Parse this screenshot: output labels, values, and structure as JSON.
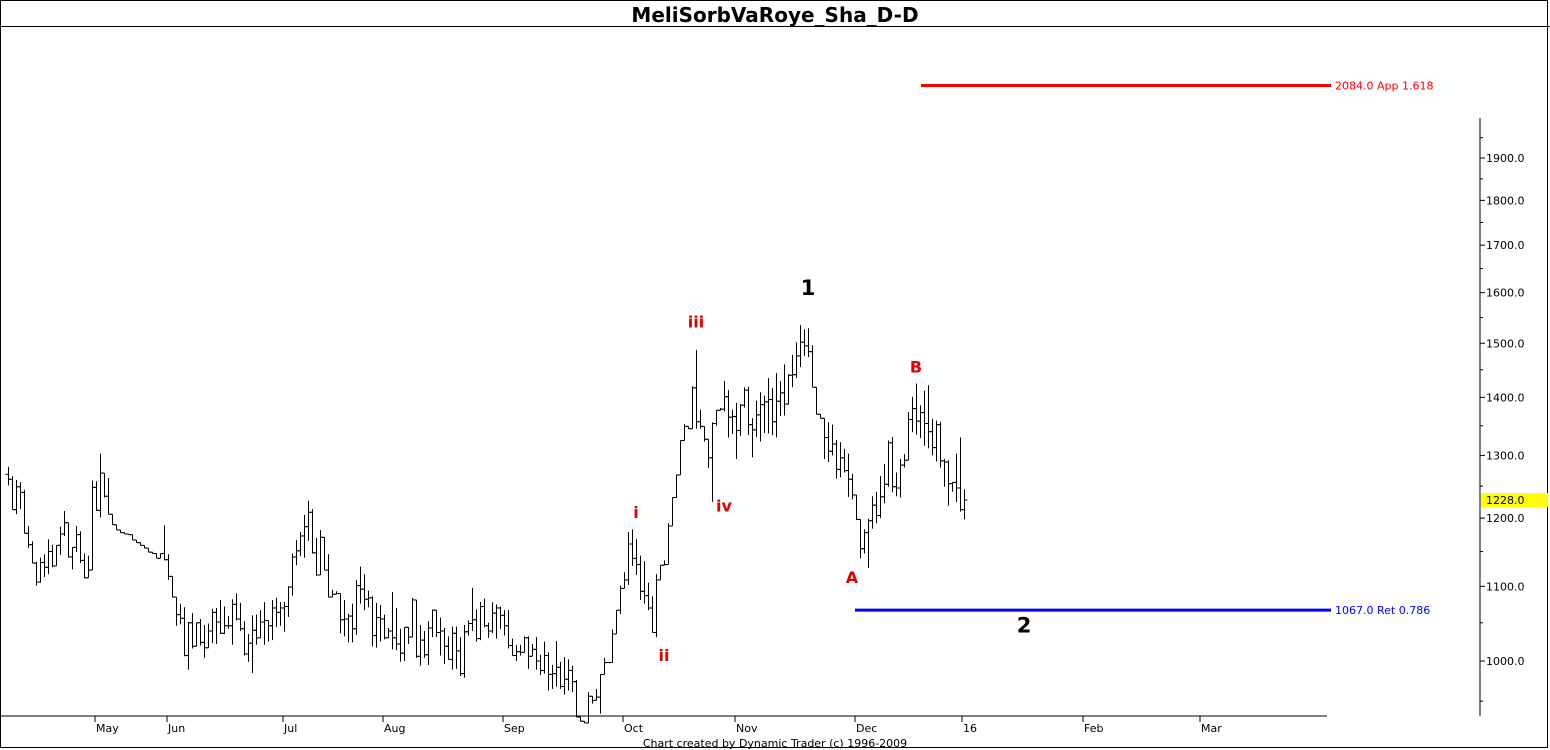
{
  "title": "MeliSorbVaRoye_Sha_D-D",
  "credit": "Chart created by Dynamic Trader  (c) 1996-2009",
  "chart_data": {
    "type": "ohlc",
    "x_labels": [
      "May",
      "Jun",
      "Jul",
      "Aug",
      "Sep",
      "Oct",
      "Nov",
      "Dec",
      "16",
      "Feb",
      "Mar"
    ],
    "y_ticks": [
      1000,
      1100,
      1200,
      1300,
      1400,
      1500,
      1600,
      1700,
      1800,
      1900
    ],
    "y_tick_labels": [
      "1000.0",
      "1100.0",
      "1200.0",
      "1300.0",
      "1400.0",
      "1500.0",
      "1600.0",
      "1700.0",
      "1800.0",
      "1900.0"
    ],
    "current_price": {
      "value": 1228,
      "label": "1228.0",
      "color": "#ffff00"
    },
    "levels": [
      {
        "value": 2084,
        "label": "2084.0 App 1.618",
        "color": "#ff0000"
      },
      {
        "value": 1067,
        "label": "1067.0 Ret 0.786",
        "color": "#0000ff"
      }
    ],
    "wave_labels": [
      {
        "text": "i",
        "bar": 157,
        "price": 1200,
        "color": "#e00000",
        "style": "minor"
      },
      {
        "text": "ii",
        "bar": 164,
        "price": 1000,
        "color": "#e00000",
        "style": "minor"
      },
      {
        "text": "iii",
        "bar": 172,
        "price": 1530,
        "color": "#e00000",
        "style": "minor"
      },
      {
        "text": "iv",
        "bar": 179,
        "price": 1210,
        "color": "#e00000",
        "style": "minor"
      },
      {
        "text": "A",
        "bar": 211,
        "price": 1105,
        "color": "#e00000",
        "style": "minor"
      },
      {
        "text": "B",
        "bar": 227,
        "price": 1445,
        "color": "#e00000",
        "style": "minor"
      },
      {
        "text": "1",
        "bar": 200,
        "price": 1595,
        "color": "#000000",
        "style": "major"
      },
      {
        "text": "2",
        "bar": 254,
        "price": 1037,
        "color": "#000000",
        "style": "major"
      }
    ],
    "ohlc": [
      [
        1269,
        1281,
        1251,
        1261
      ],
      [
        1261,
        1266,
        1213,
        1213
      ],
      [
        1213,
        1260,
        1206,
        1249
      ],
      [
        1249,
        1256,
        1214,
        1240
      ],
      [
        1240,
        1244,
        1177,
        1177
      ],
      [
        1177,
        1188,
        1155,
        1160
      ],
      [
        1160,
        1165,
        1133,
        1133
      ],
      [
        1133,
        1135,
        1101,
        1106
      ],
      [
        1106,
        1141,
        1105,
        1134
      ],
      [
        1134,
        1146,
        1113,
        1127
      ],
      [
        1127,
        1168,
        1117,
        1150
      ],
      [
        1150,
        1160,
        1127,
        1129
      ],
      [
        1129,
        1159,
        1129,
        1159
      ],
      [
        1159,
        1187,
        1145,
        1176
      ],
      [
        1176,
        1211,
        1173,
        1193
      ],
      [
        1193,
        1193,
        1141,
        1142
      ],
      [
        1142,
        1156,
        1124,
        1156
      ],
      [
        1156,
        1188,
        1149,
        1175
      ],
      [
        1175,
        1180,
        1133,
        1137
      ],
      [
        1137,
        1147,
        1111,
        1112
      ],
      [
        1112,
        1144,
        1112,
        1123
      ],
      [
        1123,
        1259,
        1123,
        1248
      ],
      [
        1248,
        1258,
        1211,
        1212
      ],
      [
        1212,
        1303,
        1201,
        1271
      ],
      [
        1271,
        1271,
        1232,
        1234
      ],
      [
        1234,
        1263,
        1206,
        1206
      ],
      [
        1206,
        1206,
        1190,
        1190
      ],
      [
        1190,
        1190,
        1182,
        1182
      ],
      [
        1182,
        1182,
        1178,
        1178
      ],
      [
        1178,
        1178,
        1176,
        1176
      ],
      [
        1176,
        1176,
        1175,
        1175
      ],
      [
        1175,
        1175,
        1167,
        1167
      ],
      [
        1167,
        1167,
        1163,
        1163
      ],
      [
        1163,
        1163,
        1159,
        1159
      ],
      [
        1159,
        1159,
        1155,
        1155
      ],
      [
        1155,
        1155,
        1149,
        1149
      ],
      [
        1149,
        1149,
        1147,
        1147
      ],
      [
        1147,
        1147,
        1140,
        1140
      ],
      [
        1140,
        1147,
        1140,
        1147
      ],
      [
        1147,
        1189,
        1137,
        1138
      ],
      [
        1138,
        1146,
        1109,
        1114
      ],
      [
        1114,
        1114,
        1085,
        1085
      ],
      [
        1085,
        1085,
        1046,
        1061
      ],
      [
        1061,
        1076,
        1048,
        1056
      ],
      [
        1056,
        1071,
        1006,
        1007
      ],
      [
        1007,
        1051,
        989,
        1050
      ],
      [
        1050,
        1063,
        1016,
        1019
      ],
      [
        1019,
        1050,
        1019,
        1050
      ],
      [
        1050,
        1055,
        1020,
        1024
      ],
      [
        1024,
        1047,
        1004,
        1017
      ],
      [
        1017,
        1049,
        1017,
        1039
      ],
      [
        1039,
        1069,
        1023,
        1064
      ],
      [
        1064,
        1070,
        1022,
        1051
      ],
      [
        1051,
        1081,
        1035,
        1036
      ],
      [
        1036,
        1072,
        1035,
        1046
      ],
      [
        1046,
        1059,
        1042,
        1046
      ],
      [
        1046,
        1082,
        1021,
        1075
      ],
      [
        1075,
        1090,
        1053,
        1055
      ],
      [
        1055,
        1077,
        1039,
        1042
      ],
      [
        1042,
        1052,
        1007,
        1009
      ],
      [
        1009,
        1035,
        999,
        1023
      ],
      [
        1023,
        1060,
        985,
        1040
      ],
      [
        1040,
        1061,
        1021,
        1030
      ],
      [
        1030,
        1067,
        1030,
        1051
      ],
      [
        1051,
        1078,
        1021,
        1053
      ],
      [
        1053,
        1053,
        1025,
        1046
      ],
      [
        1046,
        1081,
        1027,
        1070
      ],
      [
        1070,
        1084,
        1044,
        1064
      ],
      [
        1064,
        1078,
        1046,
        1070
      ],
      [
        1070,
        1078,
        1038,
        1072
      ],
      [
        1072,
        1100,
        1058,
        1099
      ],
      [
        1099,
        1147,
        1087,
        1142
      ],
      [
        1142,
        1167,
        1130,
        1151
      ],
      [
        1151,
        1179,
        1143,
        1173
      ],
      [
        1173,
        1205,
        1141,
        1187
      ],
      [
        1187,
        1227,
        1166,
        1209
      ],
      [
        1209,
        1214,
        1147,
        1148
      ],
      [
        1148,
        1170,
        1115,
        1116
      ],
      [
        1116,
        1182,
        1116,
        1171
      ],
      [
        1171,
        1171,
        1123,
        1123
      ],
      [
        1123,
        1146,
        1085,
        1085
      ],
      [
        1085,
        1095,
        1085,
        1089
      ],
      [
        1089,
        1093,
        1089,
        1090
      ],
      [
        1090,
        1090,
        1036,
        1054
      ],
      [
        1054,
        1081,
        1032,
        1055
      ],
      [
        1055,
        1062,
        1024,
        1059
      ],
      [
        1059,
        1076,
        1024,
        1042
      ],
      [
        1042,
        1109,
        1034,
        1101
      ],
      [
        1101,
        1128,
        1076,
        1096
      ],
      [
        1096,
        1117,
        1067,
        1082
      ],
      [
        1082,
        1094,
        1071,
        1084
      ],
      [
        1084,
        1086,
        1019,
        1033
      ],
      [
        1033,
        1077,
        1017,
        1057
      ],
      [
        1057,
        1074,
        1025,
        1055
      ],
      [
        1055,
        1061,
        1028,
        1030
      ],
      [
        1030,
        1043,
        1030,
        1039
      ],
      [
        1039,
        1092,
        1015,
        1030
      ],
      [
        1030,
        1070,
        1014,
        1022
      ],
      [
        1022,
        1042,
        999,
        1010
      ],
      [
        1010,
        1044,
        1000,
        1044
      ],
      [
        1044,
        1044,
        1022,
        1031
      ],
      [
        1031,
        1084,
        1031,
        1081
      ],
      [
        1081,
        1081,
        1004,
        1006
      ],
      [
        1006,
        1047,
        994,
        1027
      ],
      [
        1027,
        1039,
        1004,
        1008
      ],
      [
        1008,
        1052,
        995,
        1043
      ],
      [
        1043,
        1068,
        1031,
        1067
      ],
      [
        1067,
        1067,
        1031,
        1037
      ],
      [
        1037,
        1057,
        1007,
        1039
      ],
      [
        1039,
        1043,
        996,
        1019
      ],
      [
        1019,
        1032,
        1002,
        1002
      ],
      [
        1002,
        1045,
        989,
        1036
      ],
      [
        1036,
        1045,
        990,
        1013
      ],
      [
        1013,
        1031,
        981,
        984
      ],
      [
        984,
        1047,
        979,
        1038
      ],
      [
        1038,
        1053,
        1033,
        1049
      ],
      [
        1049,
        1098,
        1039,
        1054
      ],
      [
        1054,
        1068,
        1025,
        1029
      ],
      [
        1029,
        1078,
        1027,
        1072
      ],
      [
        1072,
        1083,
        1044,
        1046
      ],
      [
        1046,
        1050,
        1030,
        1039
      ],
      [
        1039,
        1078,
        1036,
        1063
      ],
      [
        1063,
        1075,
        1029,
        1070
      ],
      [
        1070,
        1072,
        1042,
        1060
      ],
      [
        1060,
        1067,
        1033,
        1046
      ],
      [
        1046,
        1067,
        1016,
        1020
      ],
      [
        1020,
        1029,
        1007,
        1007
      ],
      [
        1007,
        1021,
        1000,
        1012
      ],
      [
        1012,
        1021,
        1007,
        1011
      ],
      [
        1011,
        1032,
        1011,
        1030
      ],
      [
        1030,
        1032,
        990,
        1006
      ],
      [
        1006,
        1022,
        1006,
        1015
      ],
      [
        1015,
        1031,
        989,
        1000
      ],
      [
        1000,
        1008,
        982,
        988
      ],
      [
        988,
        1025,
        984,
        1007
      ],
      [
        1007,
        1011,
        963,
        983
      ],
      [
        983,
        995,
        965,
        984
      ],
      [
        984,
        1026,
        968,
        992
      ],
      [
        992,
        999,
        965,
        968
      ],
      [
        968,
        1005,
        958,
        977
      ],
      [
        977,
        1002,
        963,
        988
      ],
      [
        988,
        994,
        961,
        974
      ],
      [
        974,
        976,
        931,
        931
      ],
      [
        931,
        931,
        926,
        926
      ],
      [
        926,
        926,
        924,
        924
      ],
      [
        924,
        961,
        924,
        956
      ],
      [
        956,
        956,
        947,
        951
      ],
      [
        951,
        965,
        951,
        955
      ],
      [
        955,
        983,
        935,
        983
      ],
      [
        983,
        1004,
        983,
        998
      ],
      [
        998,
        998,
        998,
        998
      ],
      [
        998,
        1041,
        998,
        1035
      ],
      [
        1035,
        1067,
        1035,
        1067
      ],
      [
        1067,
        1101,
        1062,
        1097
      ],
      [
        1097,
        1120,
        1097,
        1109
      ],
      [
        1109,
        1179,
        1102,
        1161
      ],
      [
        1161,
        1183,
        1129,
        1140
      ],
      [
        1140,
        1168,
        1116,
        1131
      ],
      [
        1131,
        1144,
        1081,
        1093
      ],
      [
        1093,
        1136,
        1076,
        1087
      ],
      [
        1087,
        1105,
        1067,
        1070
      ],
      [
        1070,
        1086,
        1037,
        1037
      ],
      [
        1037,
        1117,
        1031,
        1109
      ],
      [
        1109,
        1130,
        1109,
        1130
      ],
      [
        1130,
        1137,
        1130,
        1131
      ],
      [
        1131,
        1192,
        1131,
        1188
      ],
      [
        1188,
        1232,
        1188,
        1232
      ],
      [
        1232,
        1268,
        1232,
        1268
      ],
      [
        1268,
        1325,
        1268,
        1325
      ],
      [
        1325,
        1353,
        1325,
        1349
      ],
      [
        1349,
        1349,
        1345,
        1345
      ],
      [
        1345,
        1420,
        1345,
        1417
      ],
      [
        1417,
        1487,
        1345,
        1357
      ],
      [
        1357,
        1378,
        1345,
        1349
      ],
      [
        1349,
        1349,
        1323,
        1327
      ],
      [
        1327,
        1327,
        1279,
        1296
      ],
      [
        1296,
        1356,
        1225,
        1354
      ],
      [
        1354,
        1377,
        1350,
        1377
      ],
      [
        1377,
        1381,
        1377,
        1379
      ],
      [
        1379,
        1430,
        1375,
        1401
      ],
      [
        1401,
        1413,
        1330,
        1365
      ],
      [
        1365,
        1378,
        1336,
        1366
      ],
      [
        1366,
        1390,
        1294,
        1342
      ],
      [
        1342,
        1388,
        1333,
        1386
      ],
      [
        1386,
        1418,
        1382,
        1413
      ],
      [
        1413,
        1419,
        1334,
        1352
      ],
      [
        1352,
        1363,
        1297,
        1343
      ],
      [
        1343,
        1394,
        1331,
        1369
      ],
      [
        1369,
        1409,
        1323,
        1387
      ],
      [
        1387,
        1403,
        1338,
        1392
      ],
      [
        1392,
        1435,
        1337,
        1396
      ],
      [
        1396,
        1417,
        1334,
        1357
      ],
      [
        1357,
        1444,
        1330,
        1393
      ],
      [
        1393,
        1429,
        1367,
        1408
      ],
      [
        1408,
        1460,
        1368,
        1388
      ],
      [
        1388,
        1442,
        1387,
        1440
      ],
      [
        1440,
        1478,
        1418,
        1441
      ],
      [
        1441,
        1502,
        1435,
        1476
      ],
      [
        1476,
        1535,
        1455,
        1502
      ],
      [
        1502,
        1527,
        1476,
        1495
      ],
      [
        1495,
        1529,
        1474,
        1484
      ],
      [
        1484,
        1496,
        1418,
        1418
      ],
      [
        1418,
        1418,
        1370,
        1370
      ],
      [
        1370,
        1370,
        1363,
        1363
      ],
      [
        1363,
        1363,
        1294,
        1330
      ],
      [
        1330,
        1356,
        1289,
        1307
      ],
      [
        1307,
        1352,
        1300,
        1319
      ],
      [
        1319,
        1326,
        1262,
        1277
      ],
      [
        1277,
        1322,
        1264,
        1296
      ],
      [
        1296,
        1311,
        1272,
        1275
      ],
      [
        1275,
        1303,
        1233,
        1261
      ],
      [
        1261,
        1270,
        1229,
        1236
      ],
      [
        1236,
        1236,
        1197,
        1198
      ],
      [
        1198,
        1198,
        1140,
        1154
      ],
      [
        1154,
        1183,
        1147,
        1178
      ],
      [
        1178,
        1199,
        1126,
        1196
      ],
      [
        1196,
        1234,
        1184,
        1220
      ],
      [
        1220,
        1241,
        1192,
        1204
      ],
      [
        1204,
        1266,
        1200,
        1233
      ],
      [
        1233,
        1286,
        1223,
        1253
      ],
      [
        1253,
        1325,
        1249,
        1321
      ],
      [
        1321,
        1331,
        1240,
        1249
      ],
      [
        1249,
        1272,
        1234,
        1247
      ],
      [
        1247,
        1294,
        1232,
        1284
      ],
      [
        1284,
        1302,
        1280,
        1292
      ],
      [
        1292,
        1374,
        1292,
        1361
      ],
      [
        1361,
        1401,
        1339,
        1380
      ],
      [
        1380,
        1425,
        1335,
        1358
      ],
      [
        1358,
        1386,
        1329,
        1373
      ],
      [
        1373,
        1412,
        1316,
        1354
      ],
      [
        1354,
        1422,
        1312,
        1340
      ],
      [
        1340,
        1362,
        1300,
        1313
      ],
      [
        1313,
        1359,
        1290,
        1352
      ],
      [
        1352,
        1357,
        1280,
        1291
      ],
      [
        1291,
        1294,
        1249,
        1289
      ],
      [
        1289,
        1292,
        1219,
        1254
      ],
      [
        1254,
        1256,
        1241,
        1256
      ],
      [
        1256,
        1303,
        1225,
        1247
      ],
      [
        1247,
        1330,
        1210,
        1213
      ],
      [
        1213,
        1245,
        1198,
        1228
      ]
    ]
  }
}
